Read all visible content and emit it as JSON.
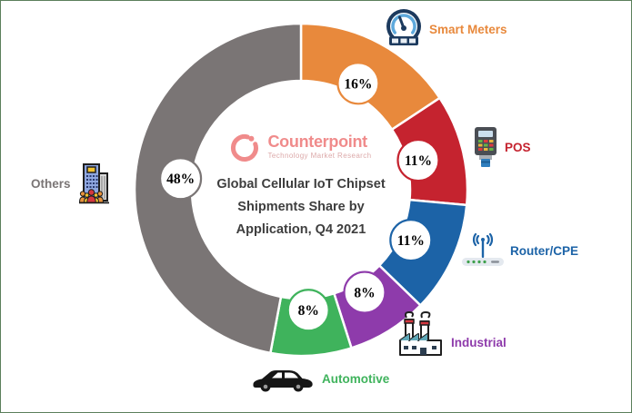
{
  "frame": {
    "border_color": "#5B7F5B",
    "background": "#FFFFFF"
  },
  "branding": {
    "logo_text": "Counterpoint",
    "logo_subtext": "Technology Market Research",
    "logo_color": "#F08B8B"
  },
  "chart_data": {
    "type": "pie",
    "subtype": "donut",
    "title": "Global Cellular IoT Chipset Shipments Share by Application, Q4 2021",
    "title_lines": [
      "Global Cellular IoT Chipset",
      "Shipments Share by",
      "Application, Q4 2021"
    ],
    "title_color": "#3E3E3E",
    "units": "%",
    "start_angle_deg": 0,
    "direction": "clockwise",
    "legend_position": "around-donut",
    "segments": [
      {
        "label": "Smart Meters",
        "value": 16,
        "display": "16%",
        "color": "#E8893C",
        "icon": "smart-meter-gauge-icon"
      },
      {
        "label": "POS",
        "value": 11,
        "display": "11%",
        "color": "#C5232F",
        "icon": "pos-terminal-icon"
      },
      {
        "label": "Router/CPE",
        "value": 11,
        "display": "11%",
        "color": "#1C63A7",
        "icon": "router-icon"
      },
      {
        "label": "Industrial",
        "value": 8,
        "display": "8%",
        "color": "#8E3BAB",
        "icon": "factory-icon"
      },
      {
        "label": "Automotive",
        "value": 8,
        "display": "8%",
        "color": "#3FB35C",
        "icon": "car-icon"
      },
      {
        "label": "Others",
        "value": 48,
        "display": "48%",
        "color": "#7A7575",
        "icon": "building-people-icon"
      }
    ]
  }
}
